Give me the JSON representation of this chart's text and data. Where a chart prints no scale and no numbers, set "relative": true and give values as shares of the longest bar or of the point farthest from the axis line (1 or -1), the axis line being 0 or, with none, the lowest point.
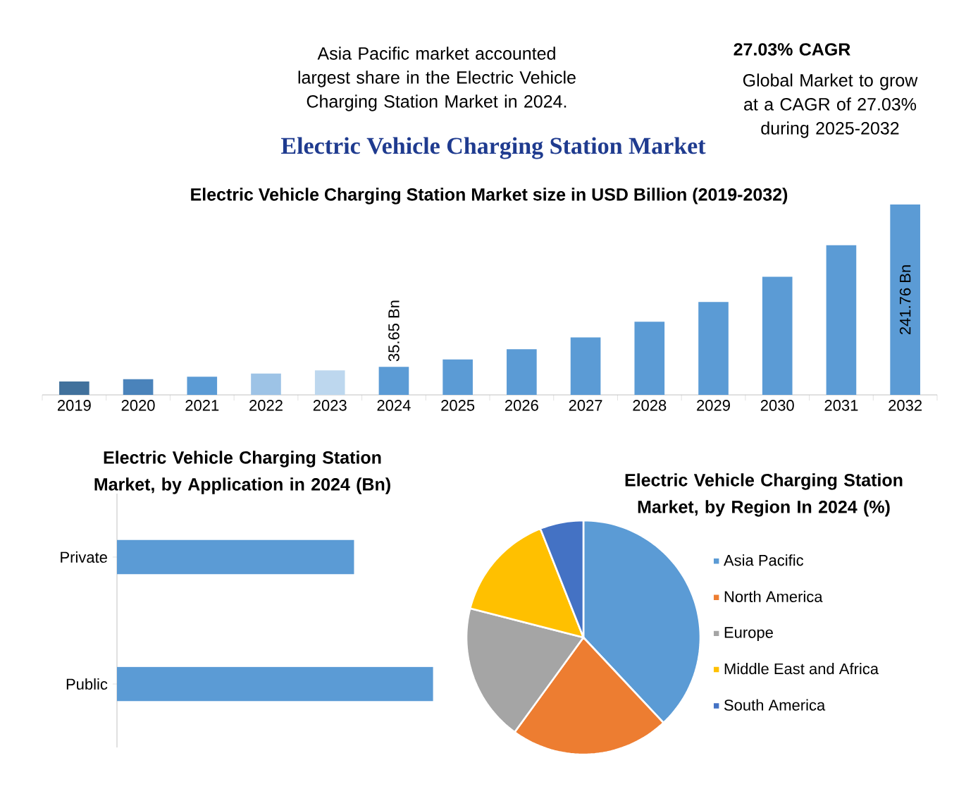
{
  "chart_data": [
    {
      "type": "other",
      "title": "Electric Vehicle Charging Station Market",
      "annotations": [
        "Asia Pacific market accounted largest share in the Electric Vehicle Charging Station Market in 2024.",
        "27.03% CAGR",
        "Global Market to grow at a CAGR of 27.03% during 2025-2032"
      ]
    },
    {
      "type": "bar",
      "title": "Electric Vehicle Charging Station Market size in USD Billion (2019-2032)",
      "categories": [
        "2019",
        "2020",
        "2021",
        "2022",
        "2023",
        "2024",
        "2025",
        "2026",
        "2027",
        "2028",
        "2029",
        "2030",
        "2031",
        "2032"
      ],
      "values": [
        17,
        20,
        23,
        27,
        31,
        35.65,
        45,
        58,
        73,
        93,
        118,
        150,
        190,
        241.76
      ],
      "colors": [
        "#41719c",
        "#4a83bb",
        "#5b9bd5",
        "#9dc3e6",
        "#bdd7ee",
        "#5b9bd5",
        "#5b9bd5",
        "#5b9bd5",
        "#5b9bd5",
        "#5b9bd5",
        "#5b9bd5",
        "#5b9bd5",
        "#5b9bd5",
        "#5b9bd5"
      ],
      "value_labels": [
        null,
        null,
        null,
        null,
        null,
        "35.65 Bn",
        null,
        null,
        null,
        null,
        null,
        null,
        null,
        "241.76 Bn"
      ]
    },
    {
      "type": "bar",
      "orientation": "horizontal",
      "relative": true,
      "title": "Electric Vehicle Charging Station Market, by Application in 2024 (Bn)",
      "categories": [
        "Private",
        "Public"
      ],
      "values": [
        0.75,
        1
      ],
      "color": "#5b9bd5"
    },
    {
      "type": "pie",
      "title": "Electric Vehicle Charging Station Market, by Region In 2024 (%)",
      "legend": "right",
      "categories": [
        "Asia Pacific",
        "North America",
        "Europe",
        "Middle East and Africa",
        "South America"
      ],
      "values": [
        38,
        22,
        19,
        15,
        6
      ],
      "colors": [
        "#5b9bd5",
        "#ed7d31",
        "#a5a5a5",
        "#ffc000",
        "#4472c4"
      ]
    }
  ]
}
